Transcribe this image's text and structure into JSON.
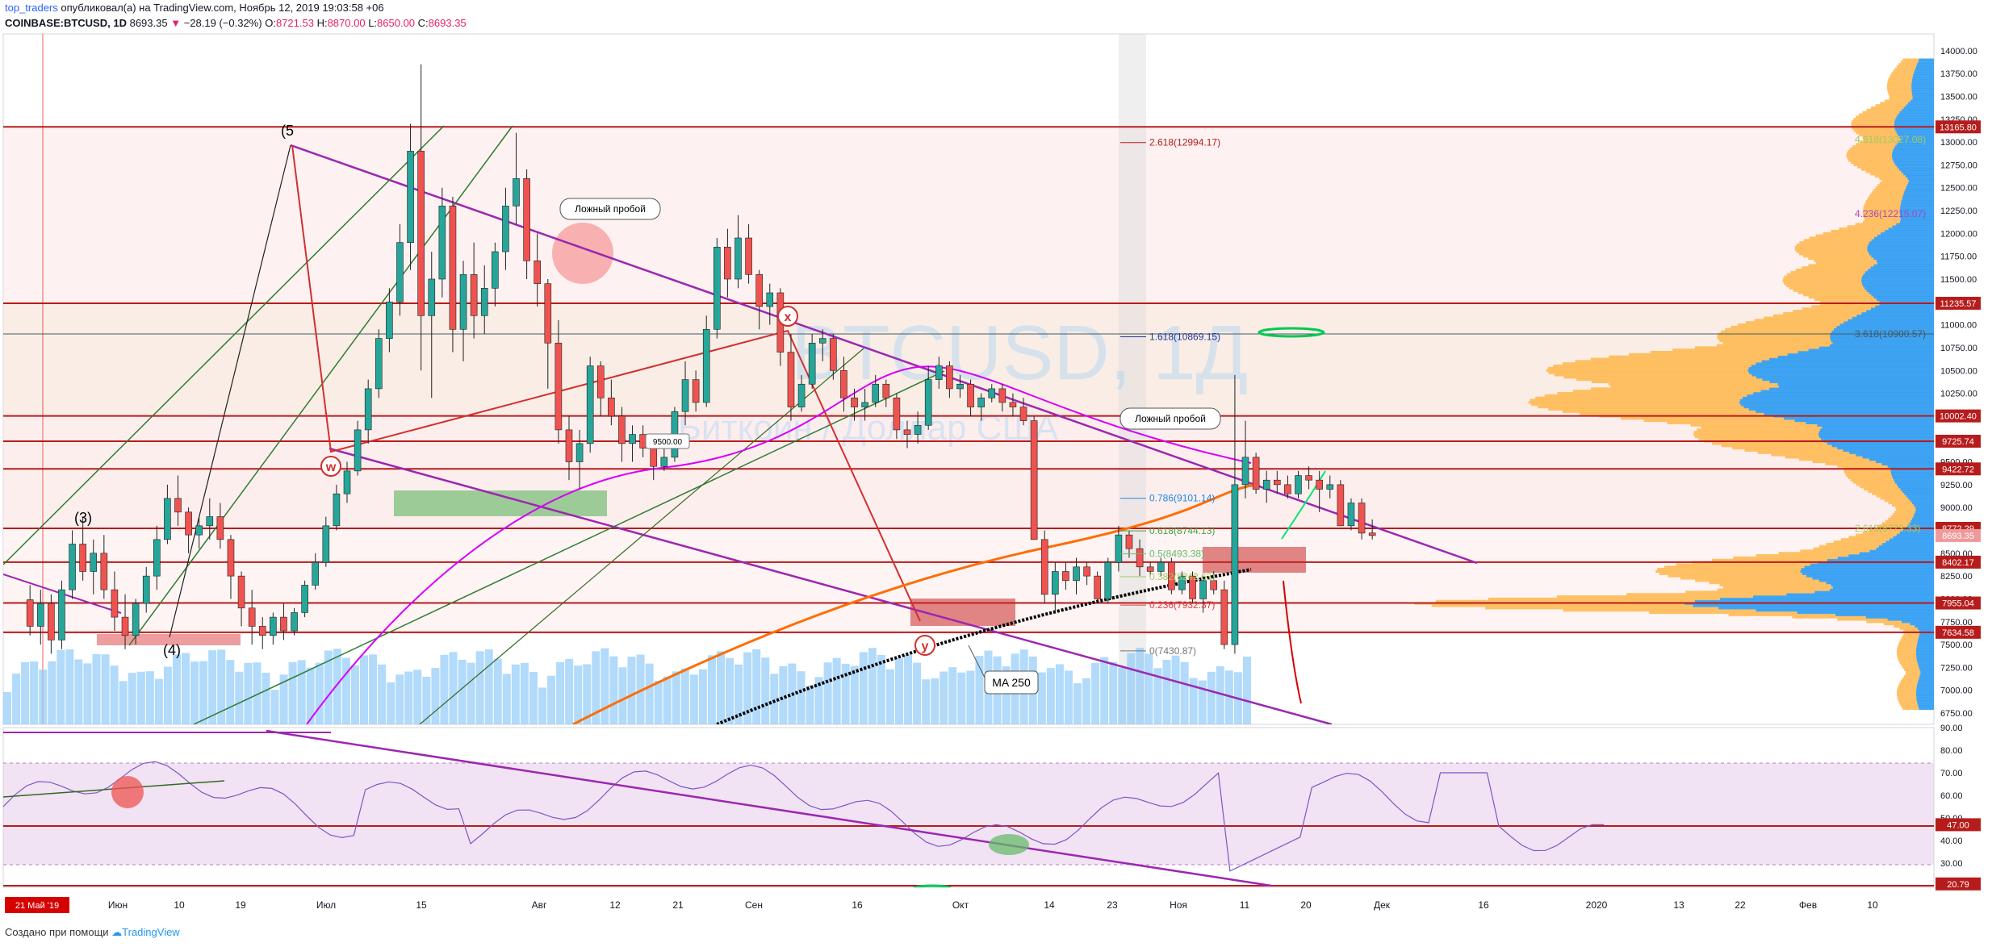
{
  "header": {
    "author": "top_traders",
    "published": "опубликовал(а) на TradingView.com, Ноябрь 12, 2019 19:03:58 +06",
    "symbol": "COINBASE:BTCUSD, 1D",
    "last": "8693.35",
    "change": "−28.19 (−0.32%)",
    "o_label": "O:",
    "o": "8721.53",
    "h_label": "H:",
    "h": "8870.00",
    "l_label": "L:",
    "l": "8650.00",
    "c_label": "C:",
    "c": "8693.35"
  },
  "footer": {
    "created": "Создано при помощи",
    "brand": "TradingView"
  },
  "colors": {
    "up": "#26a69a",
    "down": "#ef5350",
    "level": "#b71c1c",
    "channel": "#9c27b0",
    "ma250": "#000000",
    "orange_ma": "#ff6d00",
    "volume_profile": "#2196f3",
    "volume_profile_alt": "#ffb74d"
  },
  "watermark": {
    "symbol": "BTCUSD, 1Д",
    "name": "Биткоин / Доллар США"
  },
  "chart_data": {
    "type": "candlestick",
    "title": "COINBASE:BTCUSD, 1D",
    "price_axis": {
      "ticks": [
        "14000.00",
        "13750.00",
        "13500.00",
        "13250.00",
        "13000.00",
        "12750.00",
        "12500.00",
        "12250.00",
        "12000.00",
        "11750.00",
        "11500.00",
        "11250.00",
        "11000.00",
        "10750.00",
        "10500.00",
        "10250.00",
        "10000.00",
        "9750.00",
        "9500.00",
        "9250.00",
        "9000.00",
        "8750.00",
        "8500.00",
        "8250.00",
        "8000.00",
        "7750.00",
        "7500.00",
        "7250.00",
        "7000.00",
        "6750.00"
      ],
      "range": [
        6650,
        14200
      ]
    },
    "time_axis": {
      "ticks": [
        "Июн",
        "10",
        "19",
        "Июл",
        "15",
        "Авг",
        "12",
        "21",
        "Сен",
        "16",
        "Окт",
        "14",
        "23",
        "Ноя",
        "11",
        "20",
        "Дек",
        "16",
        "2020",
        "13",
        "22",
        "Фев",
        "10"
      ],
      "start_label": "21 Май '19"
    },
    "horizontal_levels": [
      13165.8,
      11235.57,
      10002.4,
      9725.74,
      9422.72,
      8772.29,
      8402.17,
      7955.04,
      7634.58
    ],
    "level_badges": [
      "13165.80",
      "11235.57",
      "10002.40",
      "9725.74",
      "9422.72",
      "8772.29",
      "8693.35",
      "8402.17",
      "7955.04",
      "7634.58"
    ],
    "fib_levels": [
      {
        "label": "2.618(12994.17)",
        "value": 12994.17
      },
      {
        "label": "1.618(10869.15)",
        "value": 10869.15
      },
      {
        "label": "0.786(9101.14)",
        "value": 9101.14
      },
      {
        "label": "0.618(8744.13)",
        "value": 8744.13
      },
      {
        "label": "0.5(8493.38)",
        "value": 8493.38
      },
      {
        "label": "0.382(8242.63)",
        "value": 8242.63
      },
      {
        "label": "0.236(7932.37)",
        "value": 7932.37
      },
      {
        "label": "0(7430.87)",
        "value": 7430.87
      }
    ],
    "right_fib_labels": [
      {
        "label": "4.618(13027.08)",
        "value": 13027.08
      },
      {
        "label": "4.236(12215.07)",
        "value": 12215.07
      },
      {
        "label": "3.618(10900.57)",
        "value": 10900.57
      },
      {
        "label": "2.618(8773.33)",
        "value": 8773.33
      }
    ],
    "annotations": [
      "Ложный пробой",
      "Ложный пробой",
      "MA 250",
      "9500.00",
      "(5",
      "(3)",
      "(4)",
      "w",
      "x",
      "y"
    ],
    "ohlc": [
      [
        7991,
        8150,
        7600,
        7700
      ],
      [
        7700,
        8100,
        7500,
        7950
      ],
      [
        7950,
        8050,
        7400,
        7550
      ],
      [
        7550,
        8200,
        7450,
        8100
      ],
      [
        8100,
        8750,
        8000,
        8600
      ],
      [
        8600,
        8900,
        8200,
        8300
      ],
      [
        8300,
        8650,
        8050,
        8500
      ],
      [
        8500,
        8700,
        8000,
        8100
      ],
      [
        8100,
        8300,
        7650,
        7800
      ],
      [
        7800,
        8050,
        7450,
        7600
      ],
      [
        7600,
        8000,
        7500,
        7950
      ],
      [
        7950,
        8350,
        7850,
        8250
      ],
      [
        8250,
        8800,
        8100,
        8650
      ],
      [
        8650,
        9250,
        8600,
        9100
      ],
      [
        9100,
        9350,
        8800,
        8950
      ],
      [
        8950,
        9000,
        8500,
        8700
      ],
      [
        8700,
        8900,
        8550,
        8800
      ],
      [
        8800,
        9100,
        8650,
        8900
      ],
      [
        8900,
        9050,
        8550,
        8650
      ],
      [
        8650,
        8700,
        8000,
        8250
      ],
      [
        8250,
        8300,
        7700,
        7900
      ],
      [
        7900,
        8100,
        7500,
        7700
      ],
      [
        7700,
        7800,
        7450,
        7600
      ],
      [
        7600,
        7850,
        7500,
        7800
      ],
      [
        7800,
        7950,
        7550,
        7650
      ],
      [
        7650,
        7900,
        7600,
        7850
      ],
      [
        7850,
        8200,
        7800,
        8150
      ],
      [
        8150,
        8500,
        8100,
        8400
      ],
      [
        8400,
        8900,
        8350,
        8800
      ],
      [
        8800,
        9250,
        8750,
        9150
      ],
      [
        9150,
        9500,
        9050,
        9400
      ],
      [
        9400,
        9950,
        9350,
        9850
      ],
      [
        9850,
        10400,
        9700,
        10300
      ],
      [
        10300,
        10950,
        10200,
        10850
      ],
      [
        10850,
        11400,
        10700,
        11250
      ],
      [
        11250,
        12100,
        11100,
        11900
      ],
      [
        11900,
        13200,
        11600,
        12900
      ],
      [
        12900,
        13850,
        10500,
        11100
      ],
      [
        11100,
        11800,
        10200,
        11500
      ],
      [
        11500,
        12500,
        11300,
        12300
      ],
      [
        12300,
        12400,
        10700,
        10950
      ],
      [
        10950,
        11700,
        10600,
        11550
      ],
      [
        11550,
        11900,
        10850,
        11100
      ],
      [
        11100,
        11650,
        10900,
        11400
      ],
      [
        11400,
        11900,
        11200,
        11800
      ],
      [
        11800,
        12500,
        11600,
        12300
      ],
      [
        12300,
        13100,
        12100,
        12600
      ],
      [
        12600,
        12700,
        11500,
        11700
      ],
      [
        11700,
        12000,
        11200,
        11450
      ],
      [
        11450,
        11500,
        10300,
        10800
      ],
      [
        10800,
        11050,
        9700,
        9850
      ],
      [
        9850,
        10000,
        9300,
        9500
      ],
      [
        9500,
        9850,
        9200,
        9700
      ],
      [
        9700,
        10650,
        9600,
        10550
      ],
      [
        10550,
        10600,
        10000,
        10200
      ],
      [
        10200,
        10400,
        9900,
        10000
      ],
      [
        10000,
        10100,
        9500,
        9700
      ],
      [
        9700,
        9900,
        9500,
        9800
      ],
      [
        9800,
        9900,
        9550,
        9650
      ],
      [
        9650,
        9700,
        9300,
        9450
      ],
      [
        9450,
        9700,
        9400,
        9550
      ],
      [
        9550,
        10100,
        9500,
        10050
      ],
      [
        10050,
        10600,
        9900,
        10400
      ],
      [
        10400,
        10500,
        10050,
        10150
      ],
      [
        10150,
        11100,
        10100,
        10950
      ],
      [
        10950,
        11950,
        10850,
        11850
      ],
      [
        11850,
        12050,
        11300,
        11500
      ],
      [
        11500,
        12200,
        11400,
        11950
      ],
      [
        11950,
        12100,
        11450,
        11550
      ],
      [
        11550,
        11600,
        10950,
        11200
      ],
      [
        11200,
        11450,
        11000,
        11350
      ],
      [
        11350,
        11400,
        10550,
        10700
      ],
      [
        10700,
        10900,
        9950,
        10100
      ],
      [
        10100,
        10450,
        10050,
        10350
      ],
      [
        10350,
        10900,
        10300,
        10800
      ],
      [
        10800,
        10950,
        10600,
        10850
      ],
      [
        10850,
        10900,
        10400,
        10500
      ],
      [
        10500,
        10650,
        10050,
        10200
      ],
      [
        10200,
        10300,
        9950,
        10100
      ],
      [
        10100,
        10300,
        9950,
        10150
      ],
      [
        10150,
        10450,
        10100,
        10350
      ],
      [
        10350,
        10400,
        10100,
        10200
      ],
      [
        10200,
        10250,
        9750,
        9850
      ],
      [
        9850,
        9950,
        9650,
        9800
      ],
      [
        9800,
        10050,
        9700,
        9900
      ],
      [
        9900,
        10550,
        9850,
        10400
      ],
      [
        10400,
        10650,
        10300,
        10550
      ],
      [
        10550,
        10600,
        10200,
        10300
      ],
      [
        10300,
        10450,
        10200,
        10350
      ],
      [
        10350,
        10400,
        10000,
        10100
      ],
      [
        10100,
        10250,
        9950,
        10200
      ],
      [
        10200,
        10350,
        10150,
        10300
      ],
      [
        10300,
        10350,
        10050,
        10150
      ],
      [
        10150,
        10250,
        10000,
        10100
      ],
      [
        10100,
        10200,
        9900,
        9950
      ],
      [
        9950,
        10000,
        8700,
        8650
      ],
      [
        8650,
        8750,
        7950,
        8050
      ],
      [
        8050,
        8400,
        7850,
        8300
      ],
      [
        8300,
        8400,
        8100,
        8200
      ],
      [
        8200,
        8450,
        8050,
        8350
      ],
      [
        8350,
        8400,
        8150,
        8250
      ],
      [
        8250,
        8300,
        7950,
        8000
      ],
      [
        8000,
        8450,
        7950,
        8400
      ],
      [
        8400,
        8800,
        8300,
        8700
      ],
      [
        8700,
        8750,
        8450,
        8550
      ],
      [
        8550,
        8650,
        8250,
        8350
      ],
      [
        8350,
        8400,
        8250,
        8300
      ],
      [
        8300,
        8450,
        8250,
        8400
      ],
      [
        8400,
        8450,
        8050,
        8100
      ],
      [
        8100,
        8300,
        8050,
        8250
      ],
      [
        8250,
        8300,
        7950,
        8000
      ],
      [
        8000,
        8250,
        7850,
        8200
      ],
      [
        8200,
        8300,
        8050,
        8100
      ],
      [
        8100,
        8200,
        7450,
        7500
      ],
      [
        7500,
        10450,
        7400,
        9250
      ],
      [
        9250,
        9950,
        9100,
        9550
      ],
      [
        9550,
        9600,
        9150,
        9200
      ],
      [
        9200,
        9400,
        9050,
        9300
      ],
      [
        9300,
        9400,
        9150,
        9250
      ],
      [
        9250,
        9350,
        9100,
        9150
      ],
      [
        9150,
        9400,
        9100,
        9350
      ],
      [
        9350,
        9450,
        9200,
        9300
      ],
      [
        9300,
        9400,
        8950,
        9200
      ],
      [
        9200,
        9350,
        9100,
        9250
      ],
      [
        9250,
        9300,
        8800,
        8800
      ],
      [
        8800,
        9100,
        8750,
        9050
      ],
      [
        9050,
        9100,
        8650,
        8720
      ],
      [
        8721.53,
        8870,
        8650,
        8693.35
      ]
    ],
    "rsi": {
      "range": [
        20,
        90
      ],
      "ticks": [
        "90.00",
        "80.00",
        "70.00",
        "60.00",
        "50.00",
        "40.00",
        "30.00"
      ],
      "levels": [
        47.0,
        20.79
      ],
      "badges": [
        "47.00",
        "20.79"
      ],
      "last": 47.0
    }
  }
}
